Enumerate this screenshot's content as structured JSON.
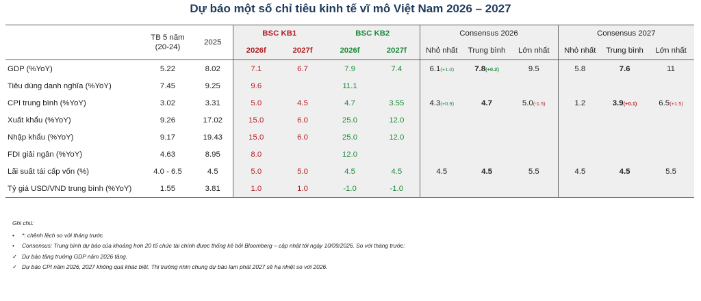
{
  "title": "Dự báo một số chỉ tiêu kinh tế vĩ mô Việt Nam 2026 – 2027",
  "colors": {
    "title": "#1f3b5c",
    "red": "#b41e24",
    "green": "#1e8a3c",
    "shade": "#efefef"
  },
  "header": {
    "tb5": "TB 5 năm",
    "tb5_sub": "(20-24)",
    "y2025": "2025",
    "kb1": "BSC KB1",
    "kb2": "BSC KB2",
    "cons26": "Consensus 2026",
    "cons27": "Consensus 2027",
    "kb1_2026": "2026f",
    "kb1_2027": "2027f",
    "kb2_2026": "2026f",
    "kb2_2027": "2027f",
    "c26_min": "Nhỏ nhất",
    "c26_mid": "Trung bình",
    "c26_max": "Lớn nhất",
    "c27_min": "Nhỏ nhất",
    "c27_mid": "Trung bình",
    "c27_max": "Lớn nhất"
  },
  "rows": [
    {
      "label": "GDP (%YoY)",
      "tb5": "5.22",
      "y2025": "8.02",
      "kb1_26": "7.1",
      "kb1_27": "6.7",
      "kb2_26": "7.9",
      "kb2_27": "7.4",
      "c26_min": "6.1",
      "c26_min_chg": "(+1.0)",
      "c26_mid": "7.8",
      "c26_mid_chg": "(+0.2)",
      "c26_max": "9.5",
      "c27_min": "5.8",
      "c27_mid": "7.6",
      "c27_max": "11"
    },
    {
      "label": "Tiêu dùng danh nghĩa (%YoY)",
      "tb5": "7.45",
      "y2025": "9.25",
      "kb1_26": "9.6",
      "kb1_27": "",
      "kb2_26": "11.1",
      "kb2_27": "",
      "c26_min": "",
      "c26_min_chg": "",
      "c26_mid": "",
      "c26_mid_chg": "",
      "c26_max": "",
      "c27_min": "",
      "c27_mid": "",
      "c27_max": ""
    },
    {
      "label": "CPI trung bình (%YoY)",
      "tb5": "3.02",
      "y2025": "3.31",
      "kb1_26": "5.0",
      "kb1_27": "4.5",
      "kb2_26": "4.7",
      "kb2_27": "3.55",
      "c26_min": "4.3",
      "c26_min_chg": "(+0.9)",
      "c26_mid": "4.7",
      "c26_mid_chg": "",
      "c26_max": "5.0",
      "c26_max_chg": "(-1.5)",
      "c27_min": "1.2",
      "c27_mid": "3.9",
      "c27_mid_chg": "(+0.1)",
      "c27_max": "6.5",
      "c27_max_chg": "(+1.5)"
    },
    {
      "label": "Xuất khẩu (%YoY)",
      "tb5": "9.26",
      "y2025": "17.02",
      "kb1_26": "15.0",
      "kb1_27": "6.0",
      "kb2_26": "25.0",
      "kb2_27": "12.0"
    },
    {
      "label": "Nhập khẩu (%YoY)",
      "tb5": "9.17",
      "y2025": "19.43",
      "kb1_26": "15.0",
      "kb1_27": "6.0",
      "kb2_26": "25.0",
      "kb2_27": "12.0"
    },
    {
      "label": "FDI giải ngân (%YoY)",
      "tb5": "4.63",
      "y2025": "8.95",
      "kb1_26": "8.0",
      "kb1_27": "",
      "kb2_26": "12.0",
      "kb2_27": ""
    },
    {
      "label": "Lãi suất tái cấp vốn (%)",
      "tb5": "4.0 - 6.5",
      "y2025": "4.5",
      "kb1_26": "5.0",
      "kb1_27": "5.0",
      "kb2_26": "4.5",
      "kb2_27": "4.5",
      "c26_min": "4.5",
      "c26_mid": "4.5",
      "c26_max": "5.5",
      "c27_min": "4.5",
      "c27_mid": "4.5",
      "c27_max": "5.5"
    },
    {
      "label": "Tỷ giá USD/VND trung bình (%YoY)",
      "tb5": "1.55",
      "y2025": "3.81",
      "kb1_26": "1.0",
      "kb1_27": "1.0",
      "kb2_26": "-1.0",
      "kb2_27": "-1.0"
    }
  ],
  "notes": {
    "heading": "Ghi chú:",
    "items": [
      {
        "marker": "•",
        "text": "*: chênh lệch so với tháng trước"
      },
      {
        "marker": "•",
        "text": "Consensus: Trung bình dự báo của khoảng hơn 20 tổ chức tài chính được thống kê bởi Bloomberg – cập nhật tới ngày 10/09/2026. So với tháng trước:"
      },
      {
        "marker": "✓",
        "text": "Dự báo tăng trưởng GDP năm 2026 tăng."
      },
      {
        "marker": "✓",
        "text": "Dự báo CPI năm 2026, 2027 không quá khác biệt. Thị trường nhìn chung dự báo lạm phát 2027 sẽ hạ nhiệt so với 2026."
      }
    ]
  }
}
